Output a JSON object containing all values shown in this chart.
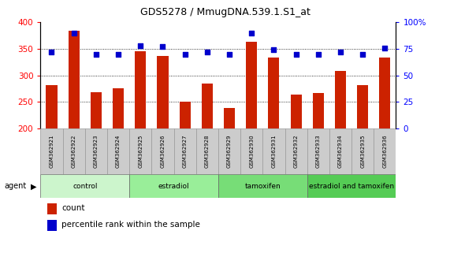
{
  "title": "GDS5278 / MmugDNA.539.1.S1_at",
  "samples": [
    "GSM362921",
    "GSM362922",
    "GSM362923",
    "GSM362924",
    "GSM362925",
    "GSM362926",
    "GSM362927",
    "GSM362928",
    "GSM362929",
    "GSM362930",
    "GSM362931",
    "GSM362932",
    "GSM362933",
    "GSM362934",
    "GSM362935",
    "GSM362936"
  ],
  "counts": [
    281,
    384,
    268,
    275,
    346,
    336,
    251,
    284,
    239,
    364,
    333,
    264,
    267,
    309,
    281,
    333
  ],
  "percentiles": [
    72,
    90,
    70,
    70,
    78,
    77,
    70,
    72,
    70,
    90,
    74,
    70,
    70,
    72,
    70,
    76
  ],
  "groups": [
    {
      "label": "control",
      "start": 0,
      "end": 4,
      "color": "#ccf0cc"
    },
    {
      "label": "estradiol",
      "start": 4,
      "end": 8,
      "color": "#99dd99"
    },
    {
      "label": "tamoxifen",
      "start": 8,
      "end": 12,
      "color": "#77cc77"
    },
    {
      "label": "estradiol and tamoxifen",
      "start": 12,
      "end": 16,
      "color": "#55bb55"
    }
  ],
  "ylim_left": [
    200,
    400
  ],
  "ylim_right": [
    0,
    100
  ],
  "yticks_left": [
    200,
    250,
    300,
    350,
    400
  ],
  "yticks_right": [
    0,
    25,
    50,
    75,
    100
  ],
  "bar_color": "#cc2200",
  "dot_color": "#0000cc",
  "legend_count_label": "count",
  "legend_percentile_label": "percentile rank within the sample",
  "agent_label": "agent"
}
